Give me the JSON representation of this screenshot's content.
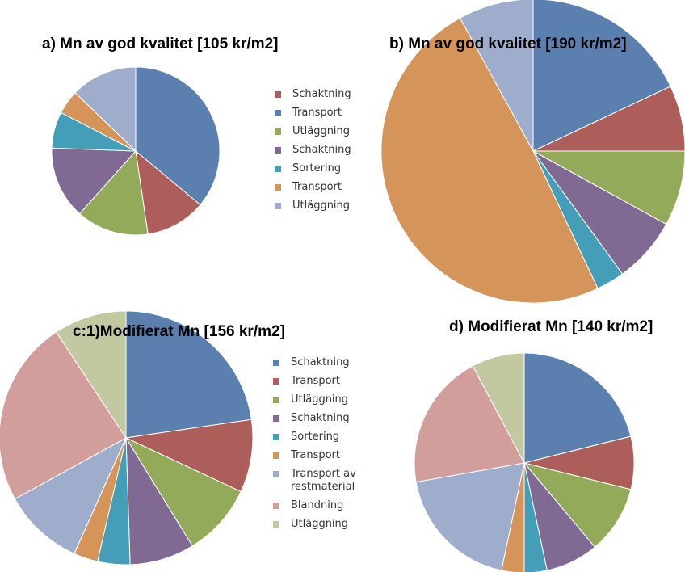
{
  "colors": {
    "blue": "#5B7FAE",
    "red": "#AE5E5A",
    "green": "#93AA5B",
    "purple": "#806A93",
    "teal": "#449EB7",
    "orange": "#D59459",
    "lightblue": "#9FADCC",
    "pink": "#D19E9C",
    "sage": "#C2C9A1"
  },
  "chart_data": [
    {
      "id": "a",
      "type": "pie",
      "title": "a) Mn av god kvalitet [105 kr/m2]",
      "slices": [
        {
          "label": "Transport",
          "value": 31,
          "color": "blue"
        },
        {
          "label": "Schaktning",
          "value": 10,
          "color": "red"
        },
        {
          "label": "Utläggning",
          "value": 12,
          "color": "green"
        },
        {
          "label": "Schaktning",
          "value": 12,
          "color": "purple"
        },
        {
          "label": "Sortering",
          "value": 6,
          "color": "teal"
        },
        {
          "label": "Transport",
          "value": 4,
          "color": "orange"
        },
        {
          "label": "Utläggning",
          "value": 11,
          "color": "lightblue"
        }
      ],
      "legend": [
        {
          "label": "Schaktning",
          "color": "red"
        },
        {
          "label": "Transport",
          "color": "blue"
        },
        {
          "label": "Utläggning",
          "color": "green"
        },
        {
          "label": "Schaktning",
          "color": "purple"
        },
        {
          "label": "Sortering",
          "color": "teal"
        },
        {
          "label": "Transport",
          "color": "orange"
        },
        {
          "label": "Utläggning",
          "color": "lightblue"
        }
      ]
    },
    {
      "id": "b",
      "type": "pie",
      "title": "b) Mn av god kvalitet [190 kr/m2]",
      "slices": [
        {
          "label": "Transport",
          "value": 18,
          "color": "blue"
        },
        {
          "label": "Schaktning",
          "value": 7,
          "color": "red"
        },
        {
          "label": "Utläggning",
          "value": 8,
          "color": "green"
        },
        {
          "label": "Schaktning",
          "value": 7,
          "color": "purple"
        },
        {
          "label": "Sortering",
          "value": 3,
          "color": "teal"
        },
        {
          "label": "Transport",
          "value": 49,
          "color": "orange"
        },
        {
          "label": "Utläggning",
          "value": 8,
          "color": "lightblue"
        }
      ],
      "legend": []
    },
    {
      "id": "c",
      "type": "pie",
      "title": "c:1)Modifierat  Mn [156 kr/m2]",
      "slices": [
        {
          "label": "Schaktning",
          "value": 22,
          "color": "blue"
        },
        {
          "label": "Transport",
          "value": 9,
          "color": "red"
        },
        {
          "label": "Utläggning",
          "value": 9,
          "color": "green"
        },
        {
          "label": "Schaktning",
          "value": 8,
          "color": "purple"
        },
        {
          "label": "Sortering",
          "value": 4,
          "color": "teal"
        },
        {
          "label": "Transport",
          "value": 3,
          "color": "orange"
        },
        {
          "label": "Transport av restmaterial",
          "value": 10,
          "color": "lightblue"
        },
        {
          "label": "Blandning",
          "value": 23,
          "color": "pink"
        },
        {
          "label": "Utläggning",
          "value": 9,
          "color": "sage"
        }
      ],
      "legend": [
        {
          "label": "Schaktning",
          "color": "blue"
        },
        {
          "label": "Transport",
          "color": "red"
        },
        {
          "label": "Utläggning",
          "color": "green"
        },
        {
          "label": "Schaktning",
          "color": "purple"
        },
        {
          "label": "Sortering",
          "color": "teal"
        },
        {
          "label": "Transport",
          "color": "orange"
        },
        {
          "label": "Transport av restmaterial",
          "color": "lightblue"
        },
        {
          "label": "Blandning",
          "color": "pink"
        },
        {
          "label": "Utläggning",
          "color": "sage"
        }
      ]
    },
    {
      "id": "d",
      "type": "pie",
      "title": "d) Modifierat  Mn [140 kr/m2]",
      "slices": [
        {
          "label": "Schaktning",
          "value": 19,
          "color": "blue"
        },
        {
          "label": "Transport",
          "value": 7,
          "color": "red"
        },
        {
          "label": "Utläggning",
          "value": 9,
          "color": "green"
        },
        {
          "label": "Schaktning",
          "value": 7,
          "color": "purple"
        },
        {
          "label": "Sortering",
          "value": 3,
          "color": "teal"
        },
        {
          "label": "Transport",
          "value": 3,
          "color": "orange"
        },
        {
          "label": "Transport av restmaterial",
          "value": 17,
          "color": "lightblue"
        },
        {
          "label": "Blandning",
          "value": 18,
          "color": "pink"
        },
        {
          "label": "Utläggning",
          "value": 7,
          "color": "sage"
        }
      ],
      "legend": []
    }
  ]
}
